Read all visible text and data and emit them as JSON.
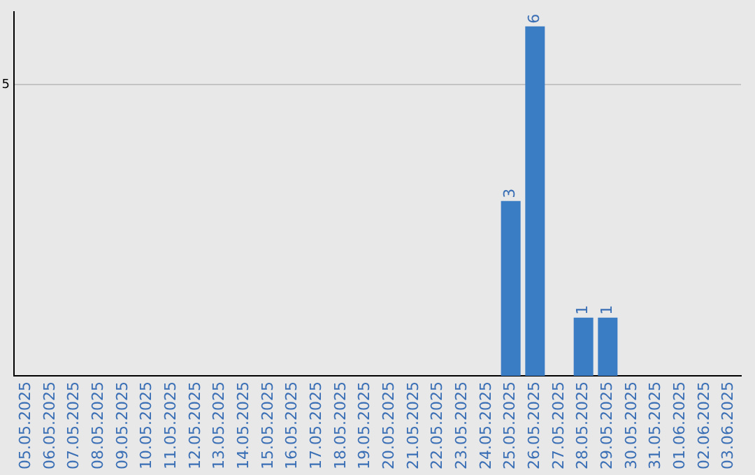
{
  "chart_data": {
    "type": "bar",
    "categories": [
      "05.05.2025",
      "06.05.2025",
      "07.05.2025",
      "08.05.2025",
      "09.05.2025",
      "10.05.2025",
      "11.05.2025",
      "12.05.2025",
      "13.05.2025",
      "14.05.2025",
      "15.05.2025",
      "16.05.2025",
      "17.05.2025",
      "18.05.2025",
      "19.05.2025",
      "20.05.2025",
      "21.05.2025",
      "22.05.2025",
      "23.05.2025",
      "24.05.2025",
      "25.05.2025",
      "26.05.2025",
      "27.05.2025",
      "28.05.2025",
      "29.05.2025",
      "30.05.2025",
      "31.05.2025",
      "01.06.2025",
      "02.06.2025",
      "03.06.2025"
    ],
    "values": [
      null,
      null,
      null,
      null,
      null,
      null,
      null,
      null,
      null,
      null,
      null,
      null,
      null,
      null,
      null,
      null,
      null,
      null,
      null,
      null,
      3,
      6,
      null,
      1,
      1,
      null,
      null,
      null,
      null,
      null
    ],
    "data_labels": true,
    "color": "#3b7dc4",
    "ylim": [
      0,
      6.25
    ],
    "yticks": [
      5
    ],
    "grid": "y"
  }
}
